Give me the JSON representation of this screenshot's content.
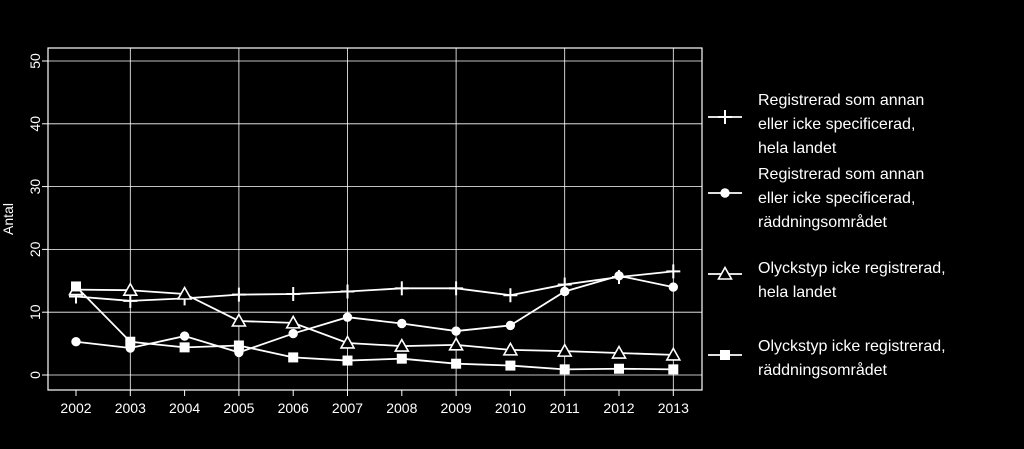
{
  "chart_data": {
    "type": "line",
    "title": "",
    "xlabel": "",
    "ylabel": "Antal",
    "ylim": [
      0,
      50
    ],
    "yticks": [
      0,
      10,
      20,
      30,
      40,
      50
    ],
    "grid": true,
    "legend_position": "right",
    "categories": [
      "2002",
      "2003",
      "2004",
      "2005",
      "2006",
      "2007",
      "2008",
      "2009",
      "2010",
      "2011",
      "2012",
      "2013"
    ],
    "series": [
      {
        "name": "Registrerad som annan eller icke specificerad, hela landet",
        "legend_lines": [
          "Registrerad som annan",
          "eller icke specificerad,",
          "hela landet"
        ],
        "marker": "plus",
        "values": [
          12.5,
          11.8,
          12.2,
          12.8,
          12.9,
          13.3,
          13.8,
          13.8,
          12.7,
          14.4,
          15.6,
          16.5
        ]
      },
      {
        "name": "Registrerad som annan eller icke specificerad, räddningsområdet",
        "legend_lines": [
          "Registrerad som annan",
          "eller icke specificerad,",
          "räddningsområdet"
        ],
        "marker": "circle",
        "values": [
          5.3,
          4.3,
          6.2,
          3.6,
          6.6,
          9.2,
          8.2,
          7.0,
          7.9,
          13.3,
          15.8,
          14.0
        ]
      },
      {
        "name": "Olyckstyp icke registrerad, hela landet",
        "legend_lines": [
          "Olyckstyp icke registrerad,",
          "hela landet"
        ],
        "marker": "triangle",
        "values": [
          13.6,
          13.5,
          12.9,
          8.6,
          8.3,
          5.1,
          4.6,
          4.8,
          4.0,
          3.8,
          3.5,
          3.2
        ]
      },
      {
        "name": "Olyckstyp icke registrerad, räddningsområdet",
        "legend_lines": [
          "Olyckstyp icke registrerad,",
          "räddningsområdet"
        ],
        "marker": "square",
        "values": [
          14.1,
          5.3,
          4.4,
          4.7,
          2.8,
          2.3,
          2.6,
          1.8,
          1.5,
          0.9,
          1.0,
          0.9
        ]
      }
    ]
  }
}
